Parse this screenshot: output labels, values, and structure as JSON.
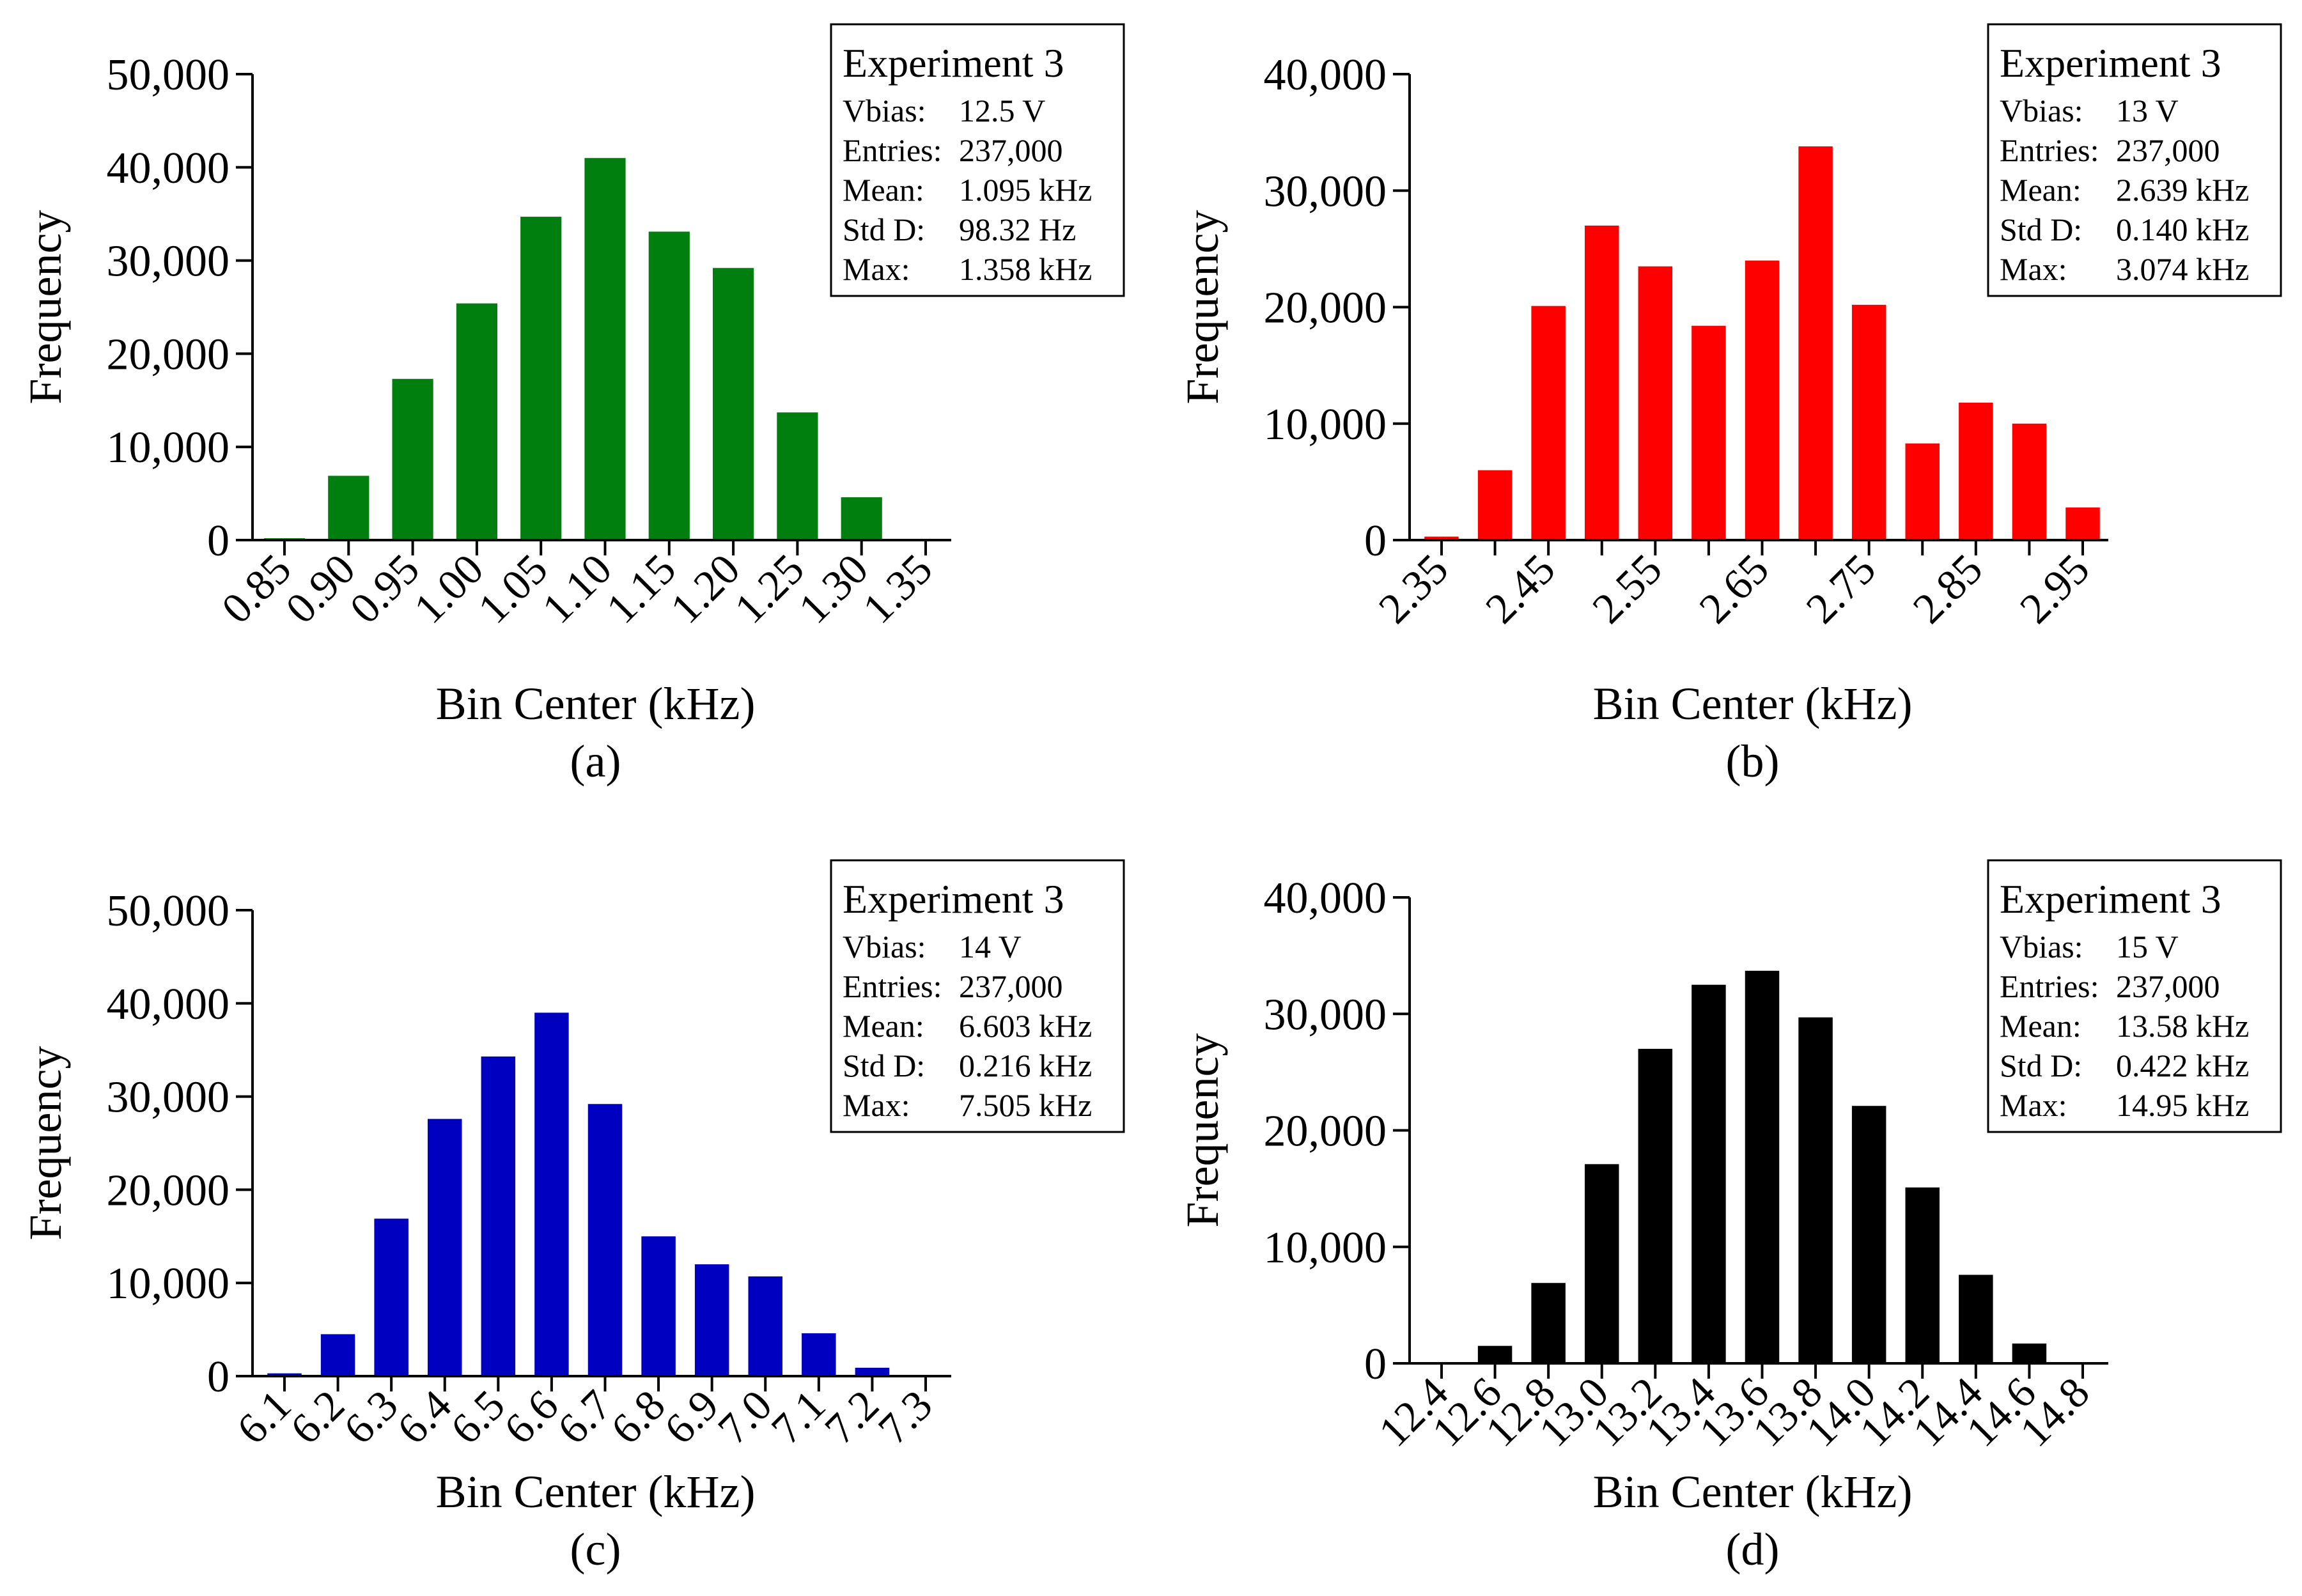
{
  "chart_data": [
    {
      "type": "bar",
      "panel_label": "(a)",
      "color": "#007F0E",
      "xlabel": "Bin Center (kHz)",
      "ylabel": "Frequency",
      "ylim": [
        0,
        50000
      ],
      "yticks": [
        0,
        10000,
        20000,
        30000,
        40000,
        50000
      ],
      "ytick_labels": [
        "0",
        "10,000",
        "20,000",
        "30,000",
        "40,000",
        "50,000"
      ],
      "categories": [
        "0.85",
        "0.90",
        "0.95",
        "1.00",
        "1.05",
        "1.10",
        "1.15",
        "1.20",
        "1.25",
        "1.30",
        "1.35"
      ],
      "values": [
        200,
        6900,
        17300,
        25400,
        34700,
        41000,
        33100,
        29200,
        13700,
        4600,
        0
      ],
      "stats": {
        "title": "Experiment 3",
        "rows": [
          {
            "label": "Vbias:",
            "value": "12.5 V"
          },
          {
            "label": "Entries:",
            "value": "237,000"
          },
          {
            "label": "Mean:",
            "value": "1.095 kHz"
          },
          {
            "label": "Std D:",
            "value": "98.32 Hz"
          },
          {
            "label": "Max:",
            "value": "1.358 kHz"
          }
        ]
      }
    },
    {
      "type": "bar",
      "panel_label": "(b)",
      "color": "#FF0000",
      "xlabel": "Bin Center (kHz)",
      "ylabel": "Frequency",
      "ylim": [
        0,
        40000
      ],
      "yticks": [
        0,
        10000,
        20000,
        30000,
        40000
      ],
      "ytick_labels": [
        "0",
        "10,000",
        "20,000",
        "30,000",
        "40,000"
      ],
      "categories": [
        "2.35",
        "2.40",
        "2.45",
        "2.50",
        "2.55",
        "2.60",
        "2.65",
        "2.70",
        "2.75",
        "2.80",
        "2.85",
        "2.90",
        "2.95"
      ],
      "tick_labels": [
        "2.35",
        "",
        "2.45",
        "",
        "2.55",
        "",
        "2.65",
        "",
        "2.75",
        "",
        "2.85",
        "",
        "2.95"
      ],
      "values": [
        300,
        6000,
        20100,
        27000,
        23500,
        18400,
        24000,
        33800,
        20200,
        8300,
        11800,
        10000,
        2800
      ],
      "stats": {
        "title": "Experiment 3",
        "rows": [
          {
            "label": "Vbias:",
            "value": "13 V"
          },
          {
            "label": "Entries:",
            "value": "237,000"
          },
          {
            "label": "Mean:",
            "value": "2.639 kHz"
          },
          {
            "label": "Std D:",
            "value": "0.140 kHz"
          },
          {
            "label": "Max:",
            "value": "3.074 kHz"
          }
        ]
      }
    },
    {
      "type": "bar",
      "panel_label": "(c)",
      "color": "#0000C0",
      "xlabel": "Bin Center (kHz)",
      "ylabel": "Frequency",
      "ylim": [
        0,
        50000
      ],
      "yticks": [
        0,
        10000,
        20000,
        30000,
        40000,
        50000
      ],
      "ytick_labels": [
        "0",
        "10,000",
        "20,000",
        "30,000",
        "40,000",
        "50,000"
      ],
      "categories": [
        "6.1",
        "6.2",
        "6.3",
        "6.4",
        "6.5",
        "6.6",
        "6.7",
        "6.8",
        "6.9",
        "7.0",
        "7.1",
        "7.2",
        "7.3"
      ],
      "values": [
        300,
        4500,
        16900,
        27600,
        34300,
        39000,
        29200,
        15000,
        12000,
        10700,
        4600,
        900,
        0
      ],
      "stats": {
        "title": "Experiment 3",
        "rows": [
          {
            "label": "Vbias:",
            "value": "14 V"
          },
          {
            "label": "Entries:",
            "value": "237,000"
          },
          {
            "label": "Mean:",
            "value": "6.603 kHz"
          },
          {
            "label": "Std D:",
            "value": "0.216 kHz"
          },
          {
            "label": "Max:",
            "value": "7.505 kHz"
          }
        ]
      }
    },
    {
      "type": "bar",
      "panel_label": "(d)",
      "color": "#000000",
      "xlabel": "Bin Center (kHz)",
      "ylabel": "Frequency",
      "ylim": [
        0,
        40000
      ],
      "yticks": [
        0,
        10000,
        20000,
        30000,
        40000
      ],
      "ytick_labels": [
        "0",
        "10,000",
        "20,000",
        "30,000",
        "40,000"
      ],
      "categories": [
        "12.4",
        "12.6",
        "12.8",
        "13.0",
        "13.2",
        "13.4",
        "13.6",
        "13.8",
        "14.0",
        "14.2",
        "14.4",
        "14.6",
        "14.8"
      ],
      "values": [
        100,
        1500,
        6900,
        17100,
        27000,
        32500,
        33700,
        29700,
        22100,
        15100,
        7600,
        1700,
        0
      ],
      "stats": {
        "title": "Experiment 3",
        "rows": [
          {
            "label": "Vbias:",
            "value": "15 V"
          },
          {
            "label": "Entries:",
            "value": "237,000"
          },
          {
            "label": "Mean:",
            "value": "13.58 kHz"
          },
          {
            "label": "Std D:",
            "value": "0.422 kHz"
          },
          {
            "label": "Max:",
            "value": "14.95 kHz"
          }
        ]
      }
    }
  ]
}
